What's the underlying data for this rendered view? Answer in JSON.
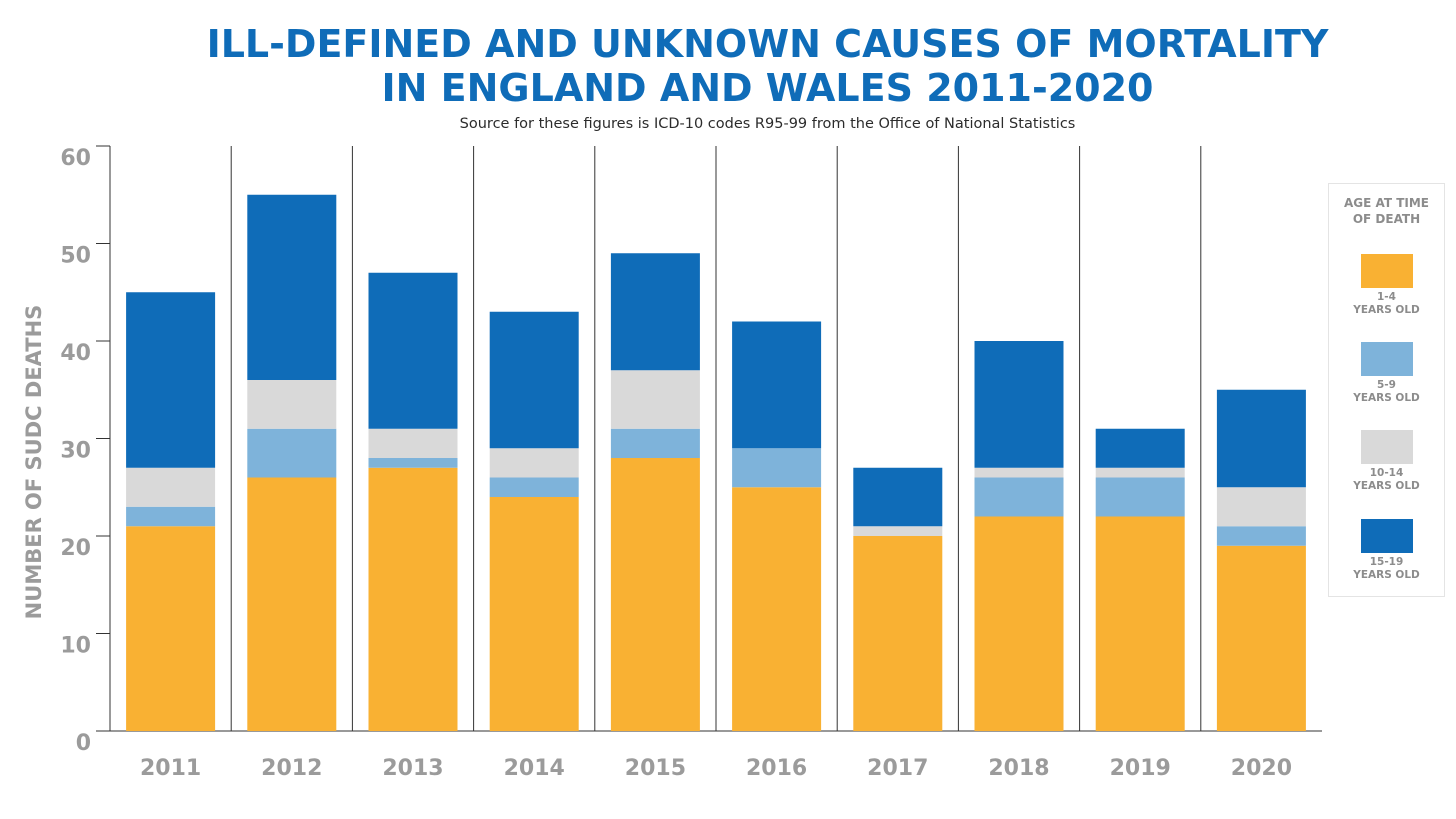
{
  "header": {
    "title_line1": "ILL-DEFINED AND UNKNOWN CAUSES OF MORTALITY",
    "title_line2": "IN ENGLAND AND WALES 2011-2020",
    "subtitle": "Source for these figures is ICD-10 codes R95-99 from the Office of National Statistics"
  },
  "chart_data": {
    "type": "bar",
    "stacked": true,
    "title": "ILL-DEFINED AND UNKNOWN CAUSES OF MORTALITY IN ENGLAND AND WALES 2011-2020",
    "ylabel": "NUMBER OF SUDC DEATHS",
    "xlabel": "",
    "ylim": [
      0,
      60
    ],
    "yticks": [
      0,
      10,
      20,
      30,
      40,
      50,
      60
    ],
    "categories": [
      "2011",
      "2012",
      "2013",
      "2014",
      "2015",
      "2016",
      "2017",
      "2018",
      "2019",
      "2020"
    ],
    "series": [
      {
        "name": "1-4 YEARS OLD",
        "color": "#f9b133",
        "values": [
          21,
          26,
          27,
          24,
          28,
          25,
          20,
          22,
          22,
          19
        ]
      },
      {
        "name": "5-9 YEARS OLD",
        "color": "#7eb3da",
        "values": [
          2,
          5,
          1,
          2,
          3,
          4,
          0,
          4,
          4,
          2
        ]
      },
      {
        "name": "10-14 YEARS OLD",
        "color": "#d9d9d9",
        "values": [
          4,
          5,
          3,
          3,
          6,
          0,
          1,
          1,
          1,
          4
        ]
      },
      {
        "name": "15-19 YEARS OLD",
        "color": "#0f6cb8",
        "values": [
          18,
          19,
          16,
          14,
          12,
          13,
          6,
          13,
          4,
          10
        ]
      }
    ],
    "grid": false,
    "legend_position": "right"
  },
  "legend": {
    "title": "AGE AT TIME OF DEATH",
    "items": [
      {
        "label": "1-4\nYEARS OLD",
        "color": "#f9b133"
      },
      {
        "label": "5-9\nYEARS OLD",
        "color": "#7eb3da"
      },
      {
        "label": "10-14\nYEARS OLD",
        "color": "#d9d9d9"
      },
      {
        "label": "15-19\nYEARS OLD",
        "color": "#0f6cb8"
      }
    ]
  }
}
